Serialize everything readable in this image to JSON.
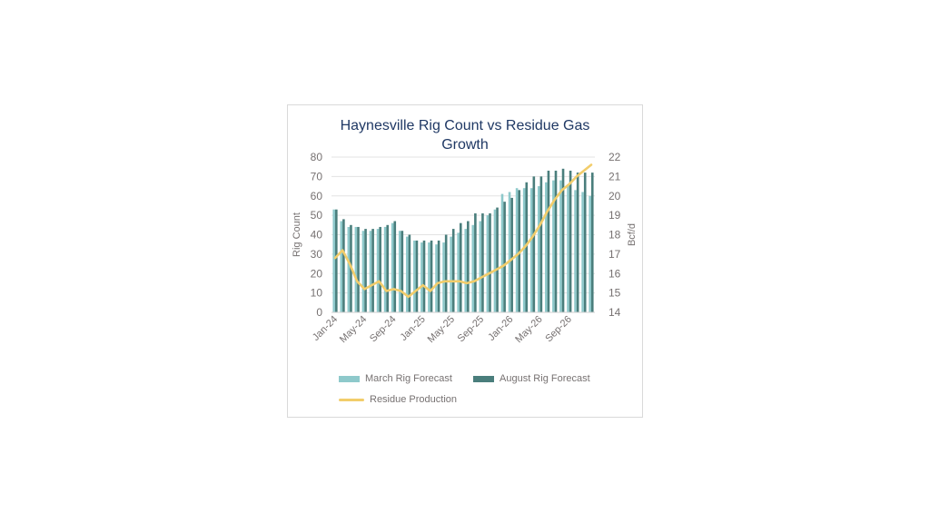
{
  "chart_data": {
    "type": "bar",
    "title_line1": "Haynesville Rig Count vs Residue Gas",
    "title_line2": "Growth",
    "ylabel": "Rig Count",
    "y2label": "Bcf/d",
    "ylim": [
      0,
      80
    ],
    "y2lim": [
      14,
      22
    ],
    "yticks": [
      "0",
      "10",
      "20",
      "30",
      "40",
      "50",
      "60",
      "70",
      "80"
    ],
    "y2ticks": [
      "14",
      "15",
      "16",
      "17",
      "18",
      "19",
      "20",
      "21",
      "22"
    ],
    "xtick_labels": [
      "Jan-24",
      "May-24",
      "Sep-24",
      "Jan-25",
      "May-25",
      "Sep-25",
      "Jan-26",
      "May-26",
      "Sep-26"
    ],
    "categories": [
      "Jan-24",
      "Feb-24",
      "Mar-24",
      "Apr-24",
      "May-24",
      "Jun-24",
      "Jul-24",
      "Aug-24",
      "Sep-24",
      "Oct-24",
      "Nov-24",
      "Dec-24",
      "Jan-25",
      "Feb-25",
      "Mar-25",
      "Apr-25",
      "May-25",
      "Jun-25",
      "Jul-25",
      "Aug-25",
      "Sep-25",
      "Oct-25",
      "Nov-25",
      "Dec-25",
      "Jan-26",
      "Feb-26",
      "Mar-26",
      "Apr-26",
      "May-26",
      "Jun-26",
      "Jul-26",
      "Aug-26",
      "Sep-26",
      "Oct-26",
      "Nov-26",
      "Dec-26"
    ],
    "series": [
      {
        "name": "March Rig Forecast",
        "kind": "bar",
        "color": "#8ec9cb",
        "values": [
          53,
          47,
          44,
          44,
          42,
          42,
          43,
          44,
          46,
          42,
          39,
          37,
          36,
          36,
          35,
          36,
          39,
          41,
          43,
          45,
          47,
          50,
          53,
          61,
          62,
          64,
          64,
          64,
          65,
          67,
          68,
          68,
          66,
          63,
          62,
          60
        ]
      },
      {
        "name": "August Rig Forecast",
        "kind": "bar",
        "color": "#4a7e7c",
        "values": [
          53,
          48,
          45,
          44,
          43,
          43,
          44,
          45,
          47,
          42,
          40,
          37,
          37,
          37,
          37,
          40,
          43,
          46,
          47,
          51,
          51,
          51,
          54,
          57,
          59,
          63,
          67,
          70,
          70,
          73,
          73,
          74,
          73,
          72,
          72,
          72
        ]
      },
      {
        "name": "Residue Production",
        "kind": "line",
        "axis": "y2",
        "color": "#f2cd6b",
        "values": [
          16.8,
          17.2,
          16.5,
          15.6,
          15.2,
          15.4,
          15.6,
          15.1,
          15.2,
          15.1,
          14.8,
          15.1,
          15.4,
          15.1,
          15.5,
          15.6,
          15.6,
          15.6,
          15.5,
          15.6,
          15.8,
          16.0,
          16.2,
          16.4,
          16.7,
          17.0,
          17.4,
          17.9,
          18.5,
          19.2,
          19.8,
          20.3,
          20.6,
          21.0,
          21.3,
          21.6
        ]
      }
    ],
    "legend": [
      "March Rig Forecast",
      "August Rig Forecast",
      "Residue Production"
    ],
    "legend_position": "bottom",
    "grid": true
  }
}
